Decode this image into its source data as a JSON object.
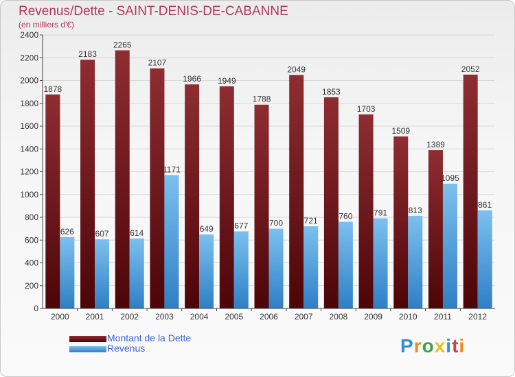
{
  "header": {
    "title": "Revenus/Dette - SAINT-DENIS-DE-CABANNE",
    "subtitle": "(en milliers d'€)"
  },
  "logo": {
    "text": "Proxiti"
  },
  "colors": {
    "debt_top": "#8e2d32",
    "debt_bottom": "#4c0508",
    "revenue_top": "#7cc0ee",
    "revenue_bottom": "#2f7fc6",
    "title": "#b3365a",
    "legend_text": "#3a62d6"
  },
  "chart_data": {
    "type": "bar",
    "categories": [
      "2000",
      "2001",
      "2002",
      "2003",
      "2004",
      "2005",
      "2006",
      "2007",
      "2008",
      "2009",
      "2010",
      "2011",
      "2012"
    ],
    "series": [
      {
        "name": "Montant de la Dette",
        "values": [
          1878,
          2183,
          2265,
          2107,
          1966,
          1949,
          1788,
          2049,
          1853,
          1703,
          1509,
          1389,
          2052
        ]
      },
      {
        "name": "Revenus",
        "values": [
          626,
          607,
          614,
          1171,
          649,
          677,
          700,
          721,
          760,
          791,
          813,
          1095,
          861
        ]
      }
    ],
    "ylim": [
      0,
      2400
    ],
    "yticks": [
      0,
      200,
      400,
      600,
      800,
      1000,
      1200,
      1400,
      1600,
      1800,
      2000,
      2200,
      2400
    ],
    "grid": true,
    "legend_position": "bottom-left"
  }
}
